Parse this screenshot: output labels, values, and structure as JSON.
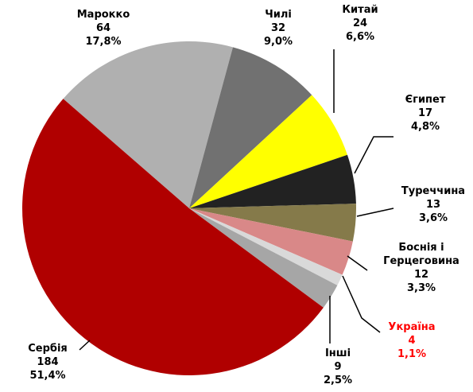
{
  "chart_data": {
    "type": "pie",
    "categories": [
      "Марокко",
      "Чилі",
      "Китай",
      "Єгипет",
      "Туреччина",
      "Боснія і Герцеговина",
      "Україна",
      "Інші",
      "Сербія"
    ],
    "values": [
      64,
      32,
      24,
      17,
      13,
      12,
      4,
      9,
      184
    ],
    "percent_labels": [
      "17,8%",
      "9,0%",
      "6,6%",
      "4,8%",
      "3,6%",
      "3,3%",
      "1,1%",
      "2,5%",
      "51,4%"
    ],
    "colors": [
      "#b0b0b0",
      "#717171",
      "#ffff00",
      "#222222",
      "#857a4a",
      "#d98888",
      "#d9d9d9",
      "#a6a6a6",
      "#b00000"
    ],
    "label_colors": [
      "#000000",
      "#000000",
      "#000000",
      "#000000",
      "#000000",
      "#000000",
      "#ff0000",
      "#000000",
      "#000000"
    ]
  }
}
